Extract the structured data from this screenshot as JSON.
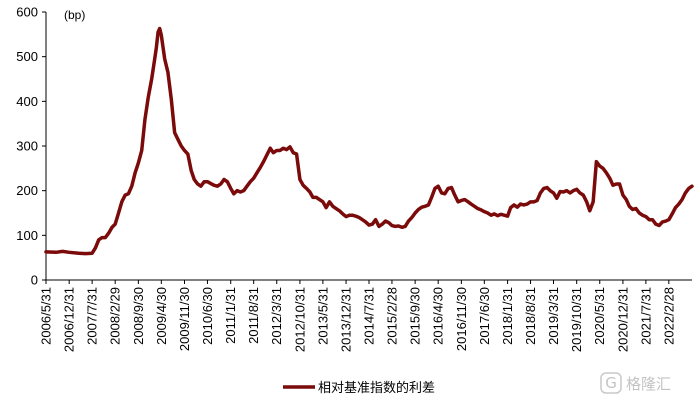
{
  "chart_data": {
    "type": "line",
    "title": "",
    "ylabel": "",
    "unit_label": "(bp)",
    "ylim": [
      0,
      600
    ],
    "y_ticks": [
      0,
      100,
      200,
      300,
      400,
      500,
      600
    ],
    "x_tick_labels": [
      "2006/5/31",
      "2006/12/31",
      "2007/7/31",
      "2008/2/29",
      "2008/9/30",
      "2009/4/30",
      "2009/11/30",
      "2010/6/30",
      "2011/1/31",
      "2011/8/31",
      "2012/3/31",
      "2012/10/31",
      "2013/5/31",
      "2013/12/31",
      "2014/7/31",
      "2015/2/28",
      "2015/9/30",
      "2016/4/30",
      "2016/11/30",
      "2017/6/30",
      "2018/1/31",
      "2018/8/31",
      "2019/3/31",
      "2019/10/31",
      "2020/5/31",
      "2020/12/31",
      "2021/7/31",
      "2022/2/28"
    ],
    "x_end": "2022/9/30",
    "grid": false,
    "legend_position": "bottom",
    "series": [
      {
        "name": "相对基准指数的利差",
        "color": "#7b0a0a",
        "points": [
          [
            "2006-05-31",
            63
          ],
          [
            "2006-08-31",
            62
          ],
          [
            "2006-10-31",
            64
          ],
          [
            "2006-12-31",
            62
          ],
          [
            "2007-03-31",
            60
          ],
          [
            "2007-05-31",
            59
          ],
          [
            "2007-07-31",
            60
          ],
          [
            "2007-08-31",
            72
          ],
          [
            "2007-09-30",
            90
          ],
          [
            "2007-10-31",
            95
          ],
          [
            "2007-11-30",
            95
          ],
          [
            "2007-12-31",
            105
          ],
          [
            "2008-01-31",
            118
          ],
          [
            "2008-02-29",
            125
          ],
          [
            "2008-03-31",
            150
          ],
          [
            "2008-04-30",
            175
          ],
          [
            "2008-05-31",
            190
          ],
          [
            "2008-06-30",
            193
          ],
          [
            "2008-07-31",
            210
          ],
          [
            "2008-08-31",
            240
          ],
          [
            "2008-09-30",
            262
          ],
          [
            "2008-10-31",
            290
          ],
          [
            "2008-11-30",
            360
          ],
          [
            "2008-12-31",
            410
          ],
          [
            "2009-01-31",
            450
          ],
          [
            "2009-02-28",
            495
          ],
          [
            "2009-03-15",
            520
          ],
          [
            "2009-03-31",
            555
          ],
          [
            "2009-04-15",
            563
          ],
          [
            "2009-04-30",
            548
          ],
          [
            "2009-05-31",
            495
          ],
          [
            "2009-06-30",
            465
          ],
          [
            "2009-07-31",
            405
          ],
          [
            "2009-08-31",
            330
          ],
          [
            "2009-09-30",
            315
          ],
          [
            "2009-10-31",
            300
          ],
          [
            "2009-11-30",
            290
          ],
          [
            "2009-12-31",
            282
          ],
          [
            "2010-01-31",
            245
          ],
          [
            "2010-02-28",
            225
          ],
          [
            "2010-03-31",
            215
          ],
          [
            "2010-04-30",
            210
          ],
          [
            "2010-05-31",
            220
          ],
          [
            "2010-06-30",
            220
          ],
          [
            "2010-07-31",
            216
          ],
          [
            "2010-08-31",
            212
          ],
          [
            "2010-09-30",
            210
          ],
          [
            "2010-10-31",
            215
          ],
          [
            "2010-11-30",
            225
          ],
          [
            "2010-12-31",
            220
          ],
          [
            "2011-01-31",
            205
          ],
          [
            "2011-02-28",
            193
          ],
          [
            "2011-03-31",
            200
          ],
          [
            "2011-04-30",
            197
          ],
          [
            "2011-05-31",
            200
          ],
          [
            "2011-06-30",
            210
          ],
          [
            "2011-07-31",
            220
          ],
          [
            "2011-08-31",
            228
          ],
          [
            "2011-09-30",
            240
          ],
          [
            "2011-10-31",
            252
          ],
          [
            "2011-11-30",
            265
          ],
          [
            "2011-12-31",
            280
          ],
          [
            "2012-01-31",
            295
          ],
          [
            "2012-02-29",
            285
          ],
          [
            "2012-03-31",
            290
          ],
          [
            "2012-04-30",
            290
          ],
          [
            "2012-05-31",
            295
          ],
          [
            "2012-06-30",
            292
          ],
          [
            "2012-07-31",
            298
          ],
          [
            "2012-08-31",
            285
          ],
          [
            "2012-09-30",
            282
          ],
          [
            "2012-10-31",
            225
          ],
          [
            "2012-11-30",
            212
          ],
          [
            "2012-12-31",
            205
          ],
          [
            "2013-01-31",
            197
          ],
          [
            "2013-02-28",
            185
          ],
          [
            "2013-03-31",
            185
          ],
          [
            "2013-04-30",
            180
          ],
          [
            "2013-05-31",
            175
          ],
          [
            "2013-06-30",
            162
          ],
          [
            "2013-07-31",
            175
          ],
          [
            "2013-08-31",
            165
          ],
          [
            "2013-09-30",
            160
          ],
          [
            "2013-10-31",
            155
          ],
          [
            "2013-11-30",
            148
          ],
          [
            "2013-12-31",
            142
          ],
          [
            "2014-01-31",
            145
          ],
          [
            "2014-02-28",
            145
          ],
          [
            "2014-03-31",
            143
          ],
          [
            "2014-04-30",
            140
          ],
          [
            "2014-05-31",
            135
          ],
          [
            "2014-06-30",
            130
          ],
          [
            "2014-07-31",
            123
          ],
          [
            "2014-08-31",
            125
          ],
          [
            "2014-09-30",
            135
          ],
          [
            "2014-10-31",
            120
          ],
          [
            "2014-11-30",
            125
          ],
          [
            "2014-12-31",
            132
          ],
          [
            "2015-01-31",
            128
          ],
          [
            "2015-02-28",
            122
          ],
          [
            "2015-03-31",
            120
          ],
          [
            "2015-04-30",
            121
          ],
          [
            "2015-05-31",
            118
          ],
          [
            "2015-06-30",
            120
          ],
          [
            "2015-07-31",
            132
          ],
          [
            "2015-08-31",
            140
          ],
          [
            "2015-09-30",
            150
          ],
          [
            "2015-10-31",
            158
          ],
          [
            "2015-11-30",
            163
          ],
          [
            "2015-12-31",
            165
          ],
          [
            "2016-01-31",
            168
          ],
          [
            "2016-02-29",
            185
          ],
          [
            "2016-03-31",
            205
          ],
          [
            "2016-04-30",
            210
          ],
          [
            "2016-05-31",
            195
          ],
          [
            "2016-06-30",
            193
          ],
          [
            "2016-07-31",
            205
          ],
          [
            "2016-08-31",
            207
          ],
          [
            "2016-09-30",
            190
          ],
          [
            "2016-10-31",
            175
          ],
          [
            "2016-11-30",
            178
          ],
          [
            "2016-12-31",
            180
          ],
          [
            "2017-01-31",
            175
          ],
          [
            "2017-02-28",
            170
          ],
          [
            "2017-03-31",
            165
          ],
          [
            "2017-04-30",
            160
          ],
          [
            "2017-05-31",
            157
          ],
          [
            "2017-06-30",
            153
          ],
          [
            "2017-07-31",
            150
          ],
          [
            "2017-08-31",
            145
          ],
          [
            "2017-09-30",
            148
          ],
          [
            "2017-10-31",
            144
          ],
          [
            "2017-11-30",
            147
          ],
          [
            "2017-12-31",
            145
          ],
          [
            "2018-01-31",
            143
          ],
          [
            "2018-02-28",
            162
          ],
          [
            "2018-03-31",
            168
          ],
          [
            "2018-04-30",
            163
          ],
          [
            "2018-05-31",
            170
          ],
          [
            "2018-06-30",
            168
          ],
          [
            "2018-07-31",
            170
          ],
          [
            "2018-08-31",
            175
          ],
          [
            "2018-09-30",
            175
          ],
          [
            "2018-10-31",
            178
          ],
          [
            "2018-11-30",
            195
          ],
          [
            "2018-12-31",
            205
          ],
          [
            "2019-01-31",
            207
          ],
          [
            "2019-02-28",
            200
          ],
          [
            "2019-03-31",
            195
          ],
          [
            "2019-04-30",
            183
          ],
          [
            "2019-05-31",
            198
          ],
          [
            "2019-06-30",
            197
          ],
          [
            "2019-07-31",
            200
          ],
          [
            "2019-08-31",
            195
          ],
          [
            "2019-09-30",
            200
          ],
          [
            "2019-10-31",
            203
          ],
          [
            "2019-11-30",
            195
          ],
          [
            "2019-12-31",
            190
          ],
          [
            "2020-01-31",
            175
          ],
          [
            "2020-02-29",
            155
          ],
          [
            "2020-03-31",
            175
          ],
          [
            "2020-04-30",
            265
          ],
          [
            "2020-05-31",
            255
          ],
          [
            "2020-06-30",
            250
          ],
          [
            "2020-07-31",
            240
          ],
          [
            "2020-08-31",
            228
          ],
          [
            "2020-09-30",
            212
          ],
          [
            "2020-10-31",
            215
          ],
          [
            "2020-11-30",
            215
          ],
          [
            "2020-12-31",
            190
          ],
          [
            "2021-01-31",
            180
          ],
          [
            "2021-02-28",
            165
          ],
          [
            "2021-03-31",
            158
          ],
          [
            "2021-04-30",
            160
          ],
          [
            "2021-05-31",
            150
          ],
          [
            "2021-06-30",
            145
          ],
          [
            "2021-07-31",
            142
          ],
          [
            "2021-08-31",
            135
          ],
          [
            "2021-09-30",
            135
          ],
          [
            "2021-10-31",
            125
          ],
          [
            "2021-11-30",
            122
          ],
          [
            "2021-12-31",
            130
          ],
          [
            "2022-01-31",
            132
          ],
          [
            "2022-02-28",
            135
          ],
          [
            "2022-03-31",
            148
          ],
          [
            "2022-04-30",
            162
          ],
          [
            "2022-05-31",
            170
          ],
          [
            "2022-06-30",
            180
          ],
          [
            "2022-07-31",
            195
          ],
          [
            "2022-08-31",
            205
          ],
          [
            "2022-09-30",
            210
          ]
        ]
      }
    ]
  },
  "watermark": {
    "logo_glyph": "G",
    "text": "格隆汇"
  }
}
